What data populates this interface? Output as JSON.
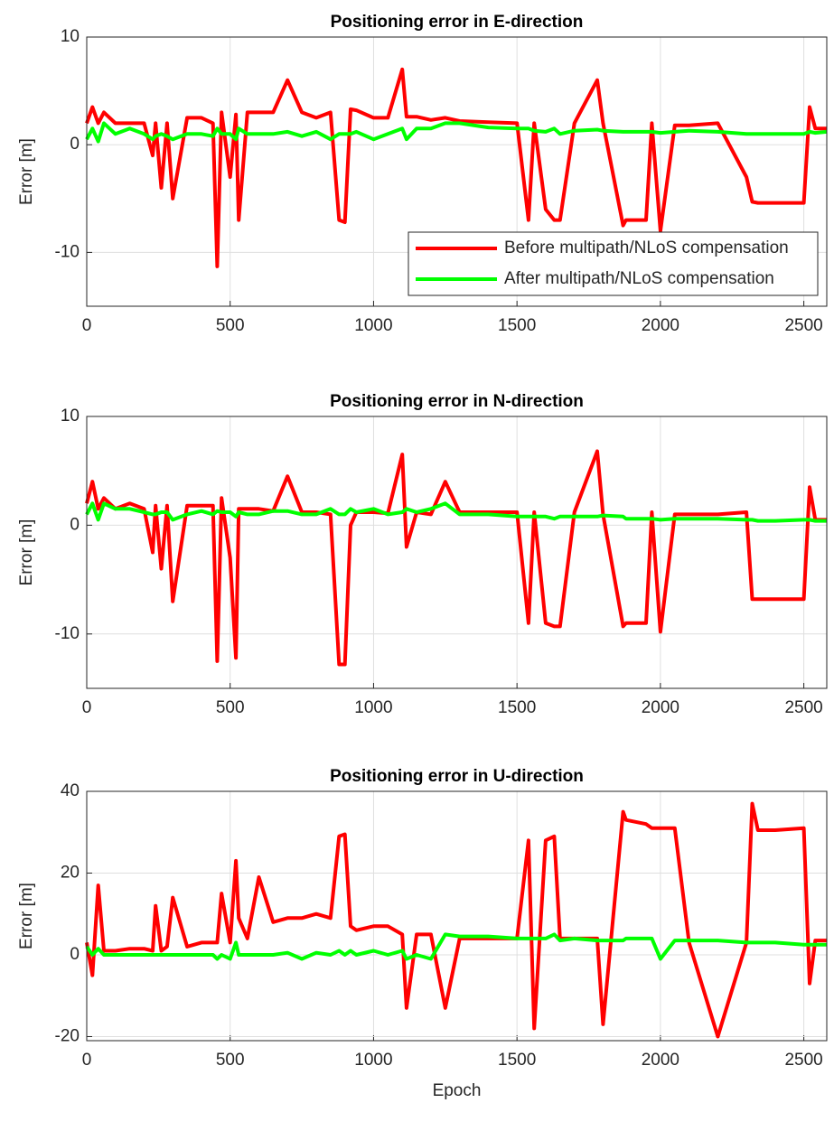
{
  "chart_data": [
    {
      "type": "line",
      "title": "Positioning error in E-direction",
      "ylabel": "Error [m]",
      "xlim": [
        0,
        2580
      ],
      "xticks": [
        0,
        500,
        1000,
        1500,
        2000,
        2500
      ],
      "ylim": [
        -15,
        10
      ],
      "yticks": [
        -10,
        0,
        10
      ],
      "grid": true,
      "legend": "lower right",
      "x": [
        0,
        20,
        40,
        60,
        100,
        150,
        200,
        230,
        240,
        260,
        280,
        300,
        350,
        400,
        440,
        455,
        470,
        500,
        520,
        530,
        560,
        600,
        650,
        700,
        750,
        800,
        850,
        880,
        900,
        920,
        940,
        1000,
        1050,
        1100,
        1115,
        1150,
        1200,
        1250,
        1300,
        1400,
        1500,
        1540,
        1560,
        1600,
        1630,
        1650,
        1700,
        1780,
        1800,
        1870,
        1880,
        1950,
        1970,
        2000,
        2050,
        2100,
        2200,
        2300,
        2320,
        2340,
        2400,
        2500,
        2520,
        2540,
        2580
      ],
      "series": [
        {
          "name": "Before multipath/NLoS compensation",
          "color": "#ff0000",
          "values": [
            2,
            3.5,
            2,
            3,
            2,
            2,
            2,
            -1,
            2,
            -4,
            2,
            -5,
            2.5,
            2.5,
            2,
            -11.3,
            3,
            -3,
            2.8,
            -7,
            3,
            3,
            3,
            6,
            3,
            2.5,
            3,
            -7,
            -7.2,
            3.3,
            3.2,
            2.5,
            2.5,
            7,
            2.6,
            2.6,
            2.3,
            2.5,
            2.2,
            2.1,
            2,
            -7,
            2,
            -6,
            -7,
            -7,
            2,
            6,
            2,
            -7.5,
            -7,
            -7,
            2,
            -8,
            1.8,
            1.8,
            2,
            -3,
            -5.3,
            -5.4,
            -5.4,
            -5.4,
            3.5,
            1.5,
            1.5
          ]
        },
        {
          "name": "After multipath/NLoS compensation",
          "color": "#00ff00",
          "values": [
            0.5,
            1.5,
            0.3,
            2,
            1,
            1.5,
            1,
            0.5,
            0.8,
            1,
            0.8,
            0.5,
            1,
            1,
            0.8,
            1.5,
            1,
            1,
            0.5,
            1.5,
            1,
            1,
            1,
            1.2,
            0.8,
            1.2,
            0.5,
            1,
            1,
            1,
            1.2,
            0.5,
            1,
            1.5,
            0.5,
            1.5,
            1.5,
            2,
            2,
            1.6,
            1.5,
            1.5,
            1.3,
            1.2,
            1.5,
            1,
            1.3,
            1.4,
            1.3,
            1.2,
            1.2,
            1.2,
            1.2,
            1.1,
            1.2,
            1.3,
            1.2,
            1,
            1,
            1,
            1,
            1,
            1.2,
            1.1,
            1.2
          ]
        }
      ]
    },
    {
      "type": "line",
      "title": "Positioning error in N-direction",
      "ylabel": "Error [m]",
      "xlim": [
        0,
        2580
      ],
      "xticks": [
        0,
        500,
        1000,
        1500,
        2000,
        2500
      ],
      "ylim": [
        -15,
        10
      ],
      "yticks": [
        -10,
        0,
        10
      ],
      "grid": true,
      "x": [
        0,
        20,
        40,
        60,
        100,
        150,
        200,
        230,
        240,
        260,
        280,
        300,
        350,
        400,
        440,
        455,
        470,
        500,
        520,
        530,
        560,
        600,
        650,
        700,
        750,
        800,
        850,
        880,
        900,
        920,
        940,
        1000,
        1050,
        1100,
        1115,
        1150,
        1200,
        1250,
        1300,
        1400,
        1500,
        1540,
        1560,
        1600,
        1630,
        1650,
        1700,
        1780,
        1800,
        1870,
        1880,
        1950,
        1970,
        2000,
        2050,
        2100,
        2200,
        2300,
        2320,
        2340,
        2400,
        2500,
        2520,
        2540,
        2580
      ],
      "series": [
        {
          "color": "#ff0000",
          "values": [
            2,
            4,
            1.5,
            2.5,
            1.5,
            2,
            1.5,
            -2.5,
            1.8,
            -4,
            1.8,
            -7,
            1.8,
            1.8,
            1.8,
            -12.5,
            2.5,
            -3,
            -12.2,
            1.5,
            1.5,
            1.5,
            1.3,
            4.5,
            1.2,
            1.2,
            1,
            -12.8,
            -12.8,
            0,
            1.2,
            1.2,
            1.1,
            6.5,
            -2,
            1.2,
            1,
            4,
            1.2,
            1.2,
            1.2,
            -9,
            1.2,
            -9,
            -9.3,
            -9.3,
            1.2,
            6.8,
            1,
            -9.3,
            -9,
            -9,
            1.2,
            -9.8,
            1,
            1,
            1,
            1.2,
            -6.8,
            -6.8,
            -6.8,
            -6.8,
            3.5,
            0.5,
            0.5
          ]
        },
        {
          "color": "#00ff00",
          "values": [
            1,
            2,
            0.5,
            2,
            1.5,
            1.5,
            1.2,
            1,
            1,
            1.2,
            1.2,
            0.5,
            1,
            1.3,
            1,
            1.3,
            1.2,
            1.2,
            0.8,
            1.2,
            1,
            1,
            1.3,
            1.3,
            1,
            1,
            1.5,
            1,
            1,
            1.5,
            1.2,
            1.5,
            1,
            1.2,
            1.5,
            1.2,
            1.5,
            2,
            1,
            1,
            0.8,
            0.8,
            0.8,
            0.8,
            0.6,
            0.8,
            0.8,
            0.8,
            0.9,
            0.8,
            0.6,
            0.6,
            0.6,
            0.5,
            0.6,
            0.6,
            0.6,
            0.5,
            0.5,
            0.4,
            0.4,
            0.5,
            0.5,
            0.4,
            0.4
          ]
        }
      ]
    },
    {
      "type": "line",
      "title": "Positioning error in U-direction",
      "ylabel": "Error [m]",
      "xlabel": "Epoch",
      "xlim": [
        0,
        2580
      ],
      "xticks": [
        0,
        500,
        1000,
        1500,
        2000,
        2500
      ],
      "ylim": [
        -21,
        40
      ],
      "yticks": [
        -20,
        0,
        20,
        40
      ],
      "grid": true,
      "x": [
        0,
        20,
        40,
        60,
        100,
        150,
        200,
        230,
        240,
        260,
        280,
        300,
        350,
        400,
        440,
        455,
        470,
        500,
        520,
        530,
        560,
        600,
        650,
        700,
        750,
        800,
        850,
        880,
        900,
        920,
        940,
        1000,
        1050,
        1100,
        1115,
        1150,
        1200,
        1250,
        1300,
        1400,
        1500,
        1540,
        1560,
        1600,
        1630,
        1650,
        1700,
        1780,
        1800,
        1870,
        1880,
        1950,
        1970,
        2000,
        2050,
        2100,
        2200,
        2300,
        2320,
        2340,
        2400,
        2500,
        2520,
        2540,
        2580
      ],
      "series": [
        {
          "color": "#ff0000",
          "values": [
            3,
            -5,
            17,
            1,
            1,
            1.5,
            1.5,
            1,
            12,
            1,
            2,
            14,
            2,
            3,
            3,
            3,
            15,
            3,
            23,
            9,
            4,
            19,
            8,
            9,
            9,
            10,
            9,
            29,
            29.5,
            7,
            6,
            7,
            7,
            5,
            -13,
            5,
            5,
            -13,
            4,
            4,
            4,
            28,
            -18,
            28,
            29,
            4,
            4,
            4,
            -17,
            35,
            33,
            32,
            31,
            31,
            31,
            3,
            -20,
            3,
            37,
            30.5,
            30.5,
            31,
            -7,
            3.5,
            3.5
          ]
        },
        {
          "color": "#00ff00",
          "values": [
            2,
            0,
            1.5,
            0,
            0,
            0,
            0,
            0,
            0,
            0,
            0,
            0,
            0,
            0,
            0,
            -1,
            0,
            -1,
            3,
            0,
            0,
            0,
            0,
            0.5,
            -1,
            0.5,
            0,
            1,
            0,
            1,
            0,
            1,
            0,
            1,
            -1,
            0,
            -1,
            5,
            4.5,
            4.5,
            4,
            4,
            4,
            4,
            5,
            3.5,
            4,
            3.5,
            3.5,
            3.5,
            4,
            4,
            4,
            -1,
            3.5,
            3.5,
            3.5,
            3,
            3,
            3,
            3,
            2.5,
            2.5,
            2.5,
            2.5
          ]
        }
      ]
    }
  ]
}
